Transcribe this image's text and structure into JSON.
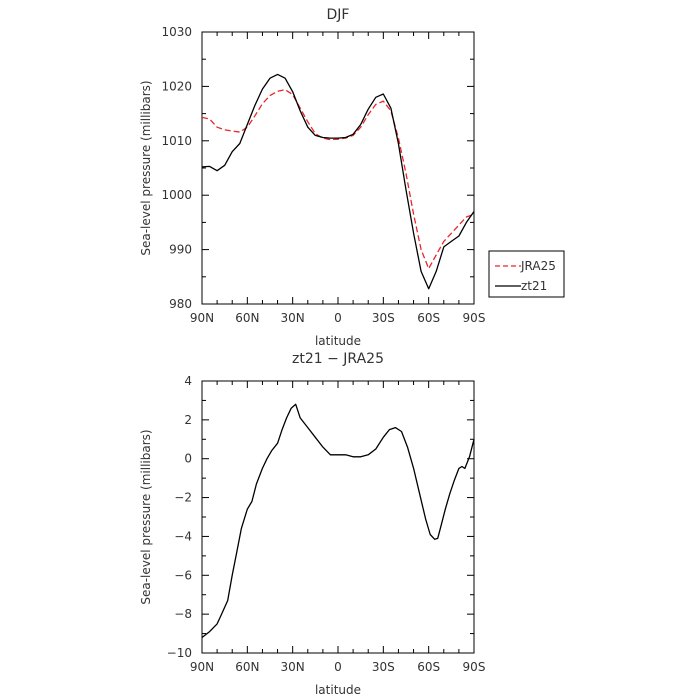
{
  "chart_data": [
    {
      "type": "line",
      "title": "DJF",
      "xlabel": "latitude",
      "ylabel": "Sea-level pressure (millibars)",
      "xlim": [
        90,
        -90
      ],
      "ylim": [
        980,
        1030
      ],
      "x_ticks": [
        90,
        60,
        30,
        0,
        -30,
        -60,
        -90
      ],
      "x_tick_labels": [
        "90N",
        "60N",
        "30N",
        "0",
        "30S",
        "60S",
        "90S"
      ],
      "y_ticks": [
        980,
        990,
        1000,
        1010,
        1020,
        1030
      ],
      "y_tick_labels": [
        "980",
        "990",
        "1000",
        "1010",
        "1020",
        "1030"
      ],
      "grid": false,
      "legend_position": "right-outside",
      "series": [
        {
          "name": "JRA25",
          "color": "#e8262b",
          "dash": "dashed",
          "x": [
            90,
            85,
            80,
            75,
            70,
            65,
            60,
            55,
            50,
            45,
            40,
            35,
            30,
            25,
            20,
            15,
            10,
            5,
            0,
            -5,
            -10,
            -15,
            -20,
            -25,
            -30,
            -35,
            -40,
            -45,
            -50,
            -55,
            -60,
            -65,
            -70,
            -75,
            -80,
            -85,
            -90
          ],
          "y": [
            1014.3,
            1014.0,
            1012.5,
            1012.0,
            1011.8,
            1011.6,
            1012.5,
            1014.6,
            1016.8,
            1018.3,
            1019.1,
            1019.4,
            1018.5,
            1016.0,
            1013.5,
            1011.3,
            1010.5,
            1010.2,
            1010.3,
            1010.5,
            1011.0,
            1012.5,
            1014.8,
            1016.7,
            1017.3,
            1015.5,
            1010.5,
            1004.0,
            996.5,
            990.0,
            986.5,
            989.0,
            991.5,
            993.0,
            994.5,
            996.0,
            996.5
          ]
        },
        {
          "name": "zt21",
          "color": "#000000",
          "dash": "solid",
          "x": [
            90,
            85,
            80,
            75,
            70,
            65,
            60,
            55,
            50,
            45,
            40,
            35,
            30,
            25,
            20,
            15,
            10,
            5,
            0,
            -5,
            -10,
            -15,
            -20,
            -25,
            -30,
            -35,
            -40,
            -45,
            -50,
            -55,
            -60,
            -65,
            -70,
            -75,
            -80,
            -85,
            -90
          ],
          "y": [
            1005.2,
            1005.3,
            1004.5,
            1005.5,
            1008.0,
            1009.5,
            1013.0,
            1016.5,
            1019.5,
            1021.5,
            1022.2,
            1021.5,
            1019.0,
            1015.5,
            1012.5,
            1011.0,
            1010.6,
            1010.5,
            1010.5,
            1010.6,
            1011.2,
            1013.0,
            1015.8,
            1018.0,
            1018.6,
            1016.0,
            1009.5,
            1001.0,
            993.0,
            986.0,
            982.8,
            986.0,
            990.5,
            991.5,
            992.5,
            995.0,
            997.0
          ]
        }
      ]
    },
    {
      "type": "line",
      "title": "zt21 − JRA25",
      "xlabel": "latitude",
      "ylabel": "Sea-level pressure (millibars)",
      "xlim": [
        90,
        -90
      ],
      "ylim": [
        -10,
        4
      ],
      "x_ticks": [
        90,
        60,
        30,
        0,
        -30,
        -60,
        -90
      ],
      "x_tick_labels": [
        "90N",
        "60N",
        "30N",
        "0",
        "30S",
        "60S",
        "90S"
      ],
      "y_ticks": [
        -10,
        -8,
        -6,
        -4,
        -2,
        0,
        2,
        4
      ],
      "y_tick_labels": [
        "−10",
        "−8",
        "−6",
        "−4",
        "−2",
        "0",
        "2",
        "4"
      ],
      "grid": false,
      "series": [
        {
          "color": "#000000",
          "dash": "solid",
          "x": [
            90,
            85,
            80,
            77,
            73,
            70,
            67,
            64,
            60,
            57,
            54,
            50,
            47,
            44,
            40,
            37,
            34,
            31,
            28,
            25,
            20,
            15,
            10,
            5,
            0,
            -5,
            -10,
            -15,
            -20,
            -25,
            -30,
            -34,
            -38,
            -42,
            -46,
            -50,
            -54,
            -58,
            -61,
            -64,
            -66,
            -68,
            -71,
            -74,
            -77,
            -80,
            -82,
            -84,
            -87,
            -90
          ],
          "y": [
            -9.2,
            -8.9,
            -8.5,
            -8.0,
            -7.3,
            -6.0,
            -4.8,
            -3.6,
            -2.6,
            -2.2,
            -1.3,
            -0.5,
            0.0,
            0.4,
            0.8,
            1.5,
            2.1,
            2.6,
            2.8,
            2.1,
            1.6,
            1.1,
            0.6,
            0.2,
            0.2,
            0.2,
            0.1,
            0.1,
            0.2,
            0.5,
            1.1,
            1.5,
            1.6,
            1.4,
            0.6,
            -0.5,
            -1.8,
            -3.1,
            -3.9,
            -4.15,
            -4.1,
            -3.5,
            -2.6,
            -1.8,
            -1.1,
            -0.5,
            -0.4,
            -0.5,
            0.1,
            1.0
          ]
        }
      ]
    }
  ]
}
